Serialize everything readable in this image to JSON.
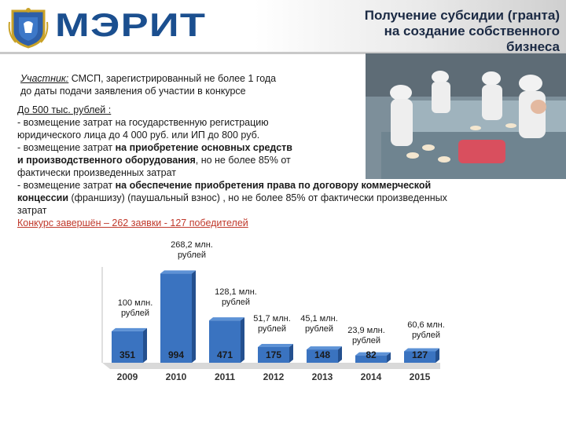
{
  "header": {
    "logo_text": "МЭРИТ",
    "title_lines": [
      "Получение субсидии (гранта)",
      "на создание собственного",
      "бизнеса"
    ]
  },
  "participant": {
    "label": "Участник:",
    "line1": " СМСП, зарегистрированный не более 1 года",
    "line2": "до даты подачи заявления об участии в конкурсе"
  },
  "limit": {
    "heading": "До 500 тыс. рублей :",
    "item1_line1": "- возмещение затрат на государственную регистрацию",
    "item1_line2": "юридического лица до 4 000 руб. или ИП до 800 руб.",
    "item2_line1_pre": "- возмещение затрат ",
    "item2_line1_bold": "на приобретение основных средств",
    "item2_line2_bold": "и производственного оборудования",
    "item2_line2_rest": ", но не более 85% от",
    "item2_line3": "фактически произведенных затрат",
    "item3_line1_pre": "- возмещение затрат ",
    "item3_line1_bold": "на обеспечение приобретения права по договору коммерческой",
    "item3_line2_bold": "концессии",
    "item3_line2_rest": " (франшизу) (паушальный взнос) , но не более 85% от фактически произведенных",
    "item3_line3": "затрат"
  },
  "contest": {
    "text": "Конкурс завершён –  262 заявки - 127 победителей"
  },
  "chart_data": {
    "type": "bar",
    "categories": [
      "2009",
      "2010",
      "2011",
      "2012",
      "2013",
      "2014",
      "2015"
    ],
    "values": [
      351,
      994,
      471,
      175,
      148,
      82,
      127
    ],
    "amounts": [
      [
        "100 млн.",
        "рублей"
      ],
      [
        "268,2 млн.",
        "рублей"
      ],
      [
        "128,1 млн.",
        "рублей"
      ],
      [
        "51,7 млн.",
        "рублей"
      ],
      [
        "45,1 млн.",
        "рублей"
      ],
      [
        "23,9 млн.",
        "рублей"
      ],
      [
        "60,6 млн.",
        "рублей"
      ]
    ],
    "ylim": [
      0,
      1050
    ],
    "bar_color": "#3a73c0",
    "grid": false
  }
}
